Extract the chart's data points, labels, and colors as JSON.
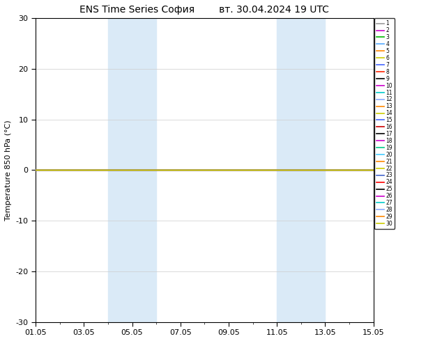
{
  "title": "ENS Time Series София        вт. 30.04.2024 19 UTC",
  "ylabel": "Temperature 850 hPa (°C)",
  "ylim": [
    -30,
    30
  ],
  "yticks": [
    -30,
    -20,
    -10,
    0,
    10,
    20,
    30
  ],
  "xlim": [
    0,
    14
  ],
  "xtick_positions": [
    0,
    2,
    4,
    6,
    8,
    10,
    12,
    14
  ],
  "xtick_labels": [
    "01.05",
    "03.05",
    "05.05",
    "07.05",
    "09.05",
    "11.05",
    "13.05",
    "15.05"
  ],
  "shaded_regions": [
    [
      3,
      4
    ],
    [
      4,
      5
    ],
    [
      10,
      11
    ],
    [
      11,
      12
    ]
  ],
  "shaded_color": "#daeaf7",
  "line_color_constant": "#dddd00",
  "line_value": 0.0,
  "member_colors": [
    "#999999",
    "#cc00cc",
    "#00bb00",
    "#55aaff",
    "#ff8800",
    "#cccc00",
    "#4466ff",
    "#ff2200",
    "#000000",
    "#cc00cc",
    "#00cccc",
    "#88aaff",
    "#ff8800",
    "#cccc00",
    "#4466ff",
    "#cc0000",
    "#000000",
    "#cc00cc",
    "#00cc88",
    "#44ccff",
    "#ff8800",
    "#cccc00",
    "#4466cc",
    "#ff0000",
    "#000000",
    "#cc00cc",
    "#00cccc",
    "#88aaff",
    "#ff8800",
    "#cccc00"
  ],
  "background_color": "#ffffff",
  "grid_color": "#cccccc",
  "grid_linewidth": 0.5,
  "title_fontsize": 10,
  "tick_fontsize": 8,
  "ylabel_fontsize": 8
}
